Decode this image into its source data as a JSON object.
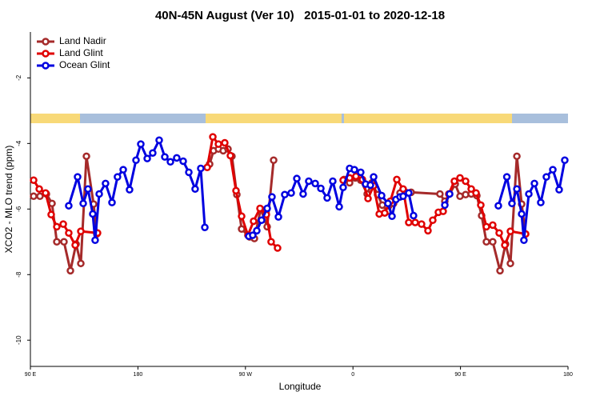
{
  "chart_data": {
    "type": "line",
    "title": "40N-45N August (Ver 10)   2015-01-01 to 2020-12-18",
    "x_label": "Longitude",
    "y_label": "XCO2 - MLO trend (ppm)",
    "xlim": [
      90,
      540
    ],
    "xticks": [
      {
        "value": 90,
        "label": "90 E"
      },
      {
        "value": 180,
        "label": "180"
      },
      {
        "value": 270,
        "label": "90 W"
      },
      {
        "value": 360,
        "label": "0"
      },
      {
        "value": 450,
        "label": "90 E"
      },
      {
        "value": 540,
        "label": "180"
      }
    ],
    "ylim": [
      -10.8,
      -0.6
    ],
    "yticks": [
      -2,
      -4,
      -6,
      -8,
      -10
    ],
    "legend": "top-left",
    "series": [
      {
        "name": "Land Nadir",
        "color": "#a52a2a",
        "x": [
          92.7,
          98.0,
          103.4,
          108.1,
          112.1,
          118.1,
          123.5,
          128.2,
          132.2,
          136.9,
          142.9,
          145.6,
          200,
          240.0,
          243.3,
          247.4,
          251.4,
          255.4,
          258.7,
          262.8,
          266.8,
          273.5,
          277.5,
          282.8,
          288.2,
          293.6,
          320,
          352.5,
          357.2,
          361.9,
          366.5,
          371.9,
          375.9,
          380.6,
          384.6,
          389.3,
          394.0,
          399.4,
          404.0,
          408.7,
          432.8,
          436.9,
          440.9,
          445.6,
          449.6,
          454.3,
          459.0,
          463.7,
          467.7,
          471.7,
          477.0,
          483.1,
          487.7,
          491.8,
          497.2,
          501.2,
          504.5
        ],
        "values": [
          -5.61,
          -5.61,
          -5.54,
          -5.83,
          -7.0,
          -7.0,
          -7.88,
          -7.07,
          -7.66,
          -4.39,
          -5.85,
          -6.76,
          null,
          -4.63,
          -4.22,
          -4.17,
          -4.22,
          -4.17,
          -4.39,
          -5.56,
          -6.61,
          -6.85,
          -6.9,
          -6.0,
          -6.54,
          -4.51,
          null,
          -5.1,
          -5.2,
          -5.05,
          -5.12,
          -5.54,
          -5.2,
          -5.56,
          -5.88,
          -6.07,
          -5.83,
          -5.51,
          -5.49,
          -5.49,
          -5.54,
          -5.76,
          -5.54,
          -5.24,
          -5.61,
          -5.56,
          -5.54,
          -5.59,
          -6.2,
          -7.0,
          -7.0,
          -7.88,
          -7.07,
          -7.66,
          -4.39,
          -5.85,
          -6.76
        ]
      },
      {
        "name": "Land Glint",
        "color": "#e00000",
        "x": [
          92.7,
          97.4,
          102.7,
          107.4,
          112.1,
          117.5,
          122.1,
          127.5,
          132.2,
          146.2,
          200,
          238.0,
          242.7,
          247.4,
          252.7,
          257.4,
          262.1,
          266.8,
          272.1,
          276.8,
          282.2,
          287.5,
          291.5,
          296.9,
          320,
          351.8,
          357.2,
          362.5,
          367.9,
          372.6,
          377.3,
          382.0,
          386.6,
          391.3,
          396.7,
          402.0,
          406.7,
          412.1,
          417.4,
          422.8,
          426.8,
          431.5,
          435.5,
          440.2,
          444.9,
          449.6,
          454.3,
          459.0,
          463.0,
          467.0,
          471.7,
          477.0,
          482.4,
          487.1,
          491.8,
          504.5
        ],
        "values": [
          -5.12,
          -5.39,
          -5.51,
          -6.17,
          -6.54,
          -6.46,
          -6.73,
          -7.1,
          -6.68,
          -6.73,
          null,
          -4.73,
          -3.8,
          -4.02,
          -3.98,
          -4.37,
          -5.44,
          -6.22,
          -6.8,
          -6.37,
          -5.98,
          -6.17,
          -7.0,
          -7.19,
          null,
          -5.12,
          -5.05,
          -5.0,
          -5.1,
          -5.68,
          -5.29,
          -6.15,
          -6.12,
          -5.76,
          -5.1,
          -5.39,
          -6.41,
          -6.41,
          -6.46,
          -6.66,
          -6.34,
          -6.1,
          -6.07,
          -5.54,
          -5.15,
          -5.05,
          -5.15,
          -5.39,
          -5.51,
          -5.88,
          -6.54,
          -6.49,
          -6.73,
          -7.1,
          -6.68,
          -6.76
        ]
      },
      {
        "name": "Ocean Glint",
        "color": "#0000e0",
        "x": [
          122.1,
          129.5,
          134.2,
          138.2,
          142.2,
          144.2,
          147.6,
          152.9,
          158.3,
          162.9,
          167.7,
          173.0,
          178.4,
          182.4,
          187.8,
          192.4,
          197.8,
          202.5,
          207.2,
          212.5,
          217.9,
          222.6,
          227.9,
          232.6,
          236.0,
          255,
          272.8,
          276.1,
          279.5,
          283.5,
          288.2,
          292.2,
          297.6,
          302.9,
          308.3,
          313.0,
          318.3,
          323.0,
          328.4,
          333.1,
          338.4,
          343.1,
          348.5,
          351.8,
          357.2,
          361.2,
          366.5,
          370.6,
          374.6,
          377.3,
          384.0,
          389.3,
          392.7,
          396.0,
          399.4,
          402.0,
          406.7,
          410.7,
          420,
          436.9,
          440.9,
          460,
          481.7,
          488.8,
          493.1,
          497.2,
          501.2,
          503.1,
          507.2,
          511.9,
          517.2,
          521.9,
          527.3,
          532.6,
          537.3
        ],
        "values": [
          -5.9,
          -5.02,
          -5.83,
          -5.39,
          -6.15,
          -6.95,
          -5.54,
          -5.22,
          -5.8,
          -5.02,
          -4.8,
          -5.41,
          -4.51,
          -4.02,
          -4.46,
          -4.29,
          -3.9,
          -4.41,
          -4.56,
          -4.44,
          -4.54,
          -4.88,
          -5.39,
          -4.76,
          -6.56,
          null,
          -6.83,
          -6.8,
          -6.66,
          -6.34,
          -5.98,
          -5.63,
          -6.24,
          -5.56,
          -5.51,
          -5.07,
          -5.54,
          -5.15,
          -5.22,
          -5.37,
          -5.66,
          -5.15,
          -5.93,
          -5.34,
          -4.76,
          -4.8,
          -4.88,
          -5.24,
          -5.27,
          -5.02,
          -5.59,
          -5.83,
          -6.22,
          -5.71,
          -5.63,
          -5.61,
          -5.51,
          -6.2,
          null,
          -5.88,
          -5.54,
          null,
          -5.9,
          -5.02,
          -5.83,
          -5.39,
          -6.15,
          -6.95,
          -5.54,
          -5.22,
          -5.8,
          -5.02,
          -4.8,
          -5.41,
          -4.51
        ]
      }
    ]
  }
}
